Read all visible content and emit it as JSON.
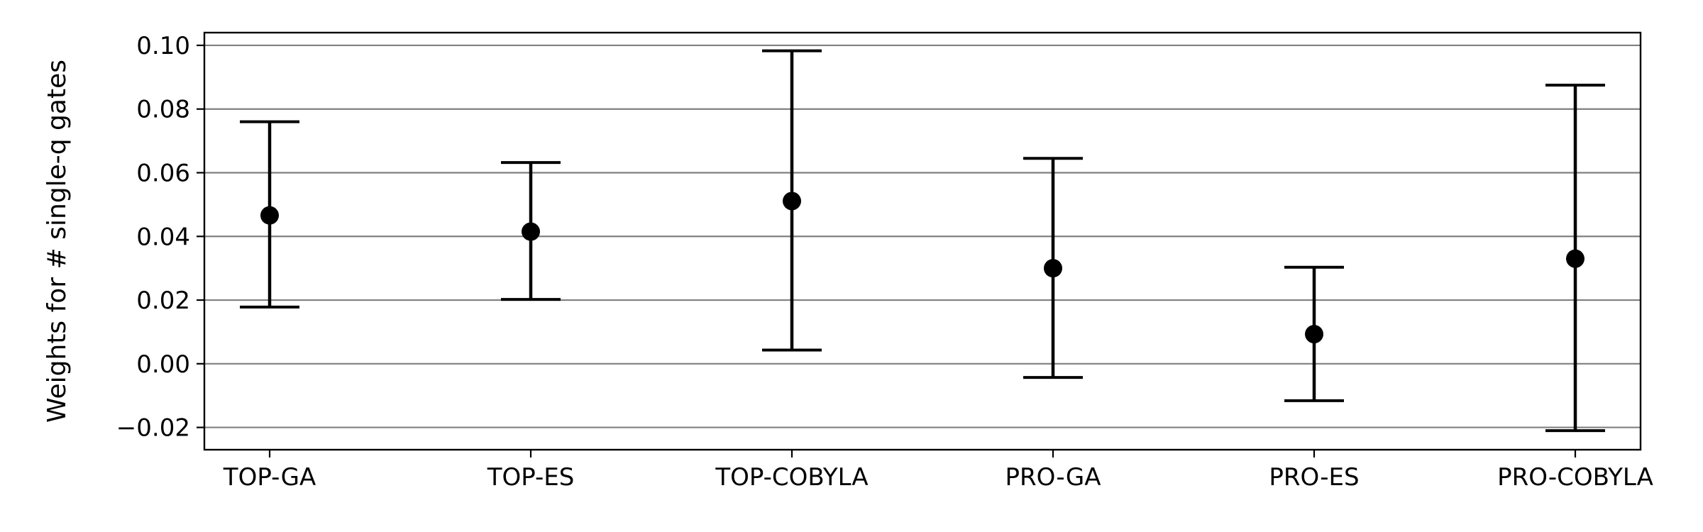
{
  "chart_data": {
    "type": "errorbar",
    "title": "",
    "xlabel": "",
    "ylabel": "Weights for # single-q gates",
    "categories": [
      "TOP-GA",
      "TOP-ES",
      "TOP-COBYLA",
      "PRO-GA",
      "PRO-ES",
      "PRO-COBYLA"
    ],
    "values": [
      0.0466,
      0.0415,
      0.0511,
      0.03,
      0.0093,
      0.033
    ],
    "error_low": [
      0.0178,
      0.0202,
      0.0043,
      -0.0043,
      -0.0116,
      -0.021
    ],
    "error_high": [
      0.076,
      0.0632,
      0.0983,
      0.0645,
      0.0303,
      0.0875
    ],
    "ylim": [
      -0.027,
      0.104
    ],
    "yticks": [
      -0.02,
      0.0,
      0.02,
      0.04,
      0.06,
      0.08,
      0.1
    ],
    "ytick_labels": [
      "−0.02",
      "0.00",
      "0.02",
      "0.04",
      "0.06",
      "0.08",
      "0.10"
    ],
    "grid": "horizontal",
    "legend": "none",
    "colors": {
      "marker": "#000000",
      "errorbar": "#000000",
      "grid": "#808080",
      "axes": "#000000"
    }
  }
}
